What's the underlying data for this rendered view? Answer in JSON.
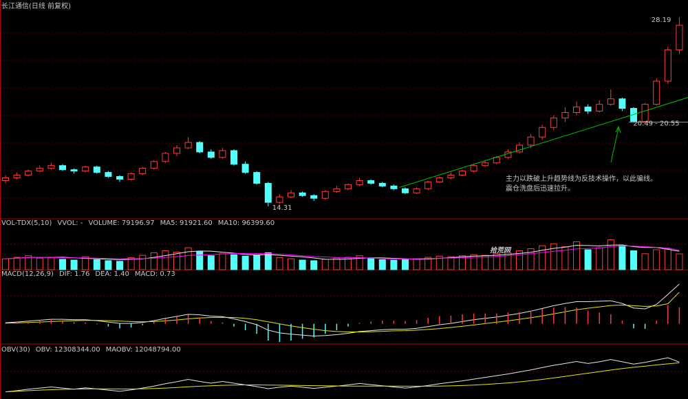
{
  "chart_data": [
    {
      "type": "candlestick",
      "title": "长江通信(日线 前复权)",
      "up_color": "#ff3c3c",
      "down_color": "#54fcfc",
      "ylim": [
        13.8,
        28.7
      ],
      "candles": [
        [
          16.2,
          16.6,
          16.0,
          16.4
        ],
        [
          16.4,
          16.8,
          16.3,
          16.6
        ],
        [
          16.6,
          17.0,
          16.5,
          16.9
        ],
        [
          16.9,
          17.3,
          16.8,
          17.1
        ],
        [
          17.1,
          17.5,
          17.0,
          17.3
        ],
        [
          17.3,
          17.4,
          16.9,
          17.0
        ],
        [
          17.0,
          17.1,
          16.7,
          16.9
        ],
        [
          16.9,
          17.3,
          16.8,
          17.2
        ],
        [
          17.2,
          17.3,
          16.7,
          16.8
        ],
        [
          16.8,
          16.9,
          16.4,
          16.5
        ],
        [
          16.5,
          16.6,
          16.1,
          16.3
        ],
        [
          16.3,
          16.8,
          16.2,
          16.7
        ],
        [
          16.7,
          17.2,
          16.6,
          17.1
        ],
        [
          17.1,
          17.7,
          17.0,
          17.6
        ],
        [
          17.6,
          18.3,
          17.5,
          18.2
        ],
        [
          18.2,
          18.8,
          18.0,
          18.6
        ],
        [
          18.6,
          19.4,
          18.5,
          19.0
        ],
        [
          19.0,
          19.1,
          18.2,
          18.3
        ],
        [
          18.3,
          18.5,
          17.8,
          17.9
        ],
        [
          17.9,
          18.6,
          17.8,
          18.4
        ],
        [
          18.4,
          18.5,
          17.3,
          17.4
        ],
        [
          17.4,
          17.6,
          16.7,
          16.8
        ],
        [
          16.8,
          16.9,
          15.9,
          16.0
        ],
        [
          16.0,
          16.1,
          14.31,
          14.6
        ],
        [
          14.6,
          15.2,
          14.5,
          15.0
        ],
        [
          15.0,
          15.5,
          14.9,
          15.3
        ],
        [
          15.3,
          15.4,
          15.0,
          15.1
        ],
        [
          15.1,
          15.2,
          14.7,
          14.9
        ],
        [
          14.9,
          15.5,
          14.8,
          15.4
        ],
        [
          15.4,
          15.8,
          15.3,
          15.6
        ],
        [
          15.6,
          16.0,
          15.5,
          15.9
        ],
        [
          15.9,
          16.4,
          15.8,
          16.2
        ],
        [
          16.2,
          16.3,
          15.9,
          16.0
        ],
        [
          16.0,
          16.1,
          15.7,
          15.8
        ],
        [
          15.8,
          15.9,
          15.5,
          15.6
        ],
        [
          15.6,
          15.7,
          15.2,
          15.3
        ],
        [
          15.3,
          15.7,
          15.2,
          15.6
        ],
        [
          15.6,
          16.2,
          15.5,
          16.1
        ],
        [
          16.1,
          16.5,
          16.0,
          16.4
        ],
        [
          16.4,
          16.8,
          16.3,
          16.6
        ],
        [
          16.6,
          17.0,
          16.5,
          16.9
        ],
        [
          16.9,
          17.4,
          16.8,
          17.3
        ],
        [
          17.3,
          17.7,
          17.2,
          17.5
        ],
        [
          17.5,
          18.0,
          17.4,
          17.9
        ],
        [
          17.9,
          18.5,
          17.8,
          18.3
        ],
        [
          18.3,
          19.0,
          18.2,
          18.8
        ],
        [
          18.8,
          19.6,
          18.6,
          19.4
        ],
        [
          19.4,
          20.3,
          19.2,
          20.1
        ],
        [
          20.1,
          21.0,
          19.9,
          20.8
        ],
        [
          20.8,
          21.6,
          20.5,
          21.2
        ],
        [
          21.2,
          22.0,
          21.0,
          21.6
        ],
        [
          21.6,
          21.8,
          21.1,
          21.3
        ],
        [
          21.3,
          22.1,
          21.2,
          21.8
        ],
        [
          21.8,
          22.9,
          21.7,
          22.2
        ],
        [
          22.2,
          22.3,
          21.3,
          21.5
        ],
        [
          21.5,
          21.6,
          20.49,
          20.55
        ],
        [
          20.55,
          21.9,
          20.5,
          21.8
        ],
        [
          21.8,
          23.7,
          21.7,
          23.5
        ],
        [
          23.5,
          26.0,
          23.3,
          25.8
        ],
        [
          25.8,
          28.19,
          25.5,
          27.6
        ]
      ],
      "high_label": "28.19",
      "low_label": "14.31",
      "range_label": "20.49 - 20.55",
      "trendline": {
        "x": [
          34.5,
          59.8
        ],
        "y": [
          15.7,
          22.7
        ],
        "color": "#00c000"
      },
      "support_line": {
        "x": [
          54.6,
          59.8
        ],
        "y": 20.5,
        "color": "#c8c8c8"
      },
      "annotation": [
        "主力以跌破上升趋势线为反技术操作，以此骗线。",
        "震仓洗盘后迅速拉升。"
      ],
      "annotation_color": "#00e000"
    },
    {
      "type": "combo",
      "title": "VOL-TDX(5,10)",
      "vvol": "VVOL: -",
      "watermark": "拾荒网",
      "ylim": [
        0,
        200000
      ],
      "series": [
        {
          "name": "VOLUME: 79196.97",
          "type": "bar",
          "color": "#e8e800",
          "values": [
            55000,
            62000,
            70000,
            58000,
            60000,
            52000,
            48000,
            65000,
            50000,
            45000,
            42000,
            60000,
            72000,
            85000,
            95000,
            88000,
            110000,
            90000,
            70000,
            80000,
            75000,
            68000,
            72000,
            85000,
            60000,
            55000,
            48000,
            45000,
            52000,
            58000,
            62000,
            70000,
            55000,
            50000,
            48000,
            52000,
            55000,
            62000,
            68000,
            65000,
            70000,
            75000,
            72000,
            80000,
            85000,
            95000,
            105000,
            120000,
            130000,
            115000,
            140000,
            100000,
            110000,
            150000,
            120000,
            95000,
            80000,
            100000,
            105000,
            79196.97
          ]
        },
        {
          "name": "MA5: 91921.60",
          "type": "line",
          "color": "#e8e8e8",
          "values": [
            55000,
            58000,
            61000,
            62000,
            61000,
            62400,
            59600,
            56600,
            55000,
            52000,
            50000,
            52400,
            53800,
            61800,
            70800,
            80000,
            90000,
            93600,
            92600,
            87600,
            82600,
            76600,
            73000,
            76000,
            72000,
            68000,
            64000,
            58600,
            52000,
            51600,
            53000,
            57400,
            59400,
            59000,
            57000,
            55000,
            52000,
            53400,
            57000,
            60400,
            64000,
            68000,
            70000,
            72400,
            76400,
            81400,
            87400,
            97400,
            107000,
            113000,
            122000,
            121000,
            119000,
            123000,
            124000,
            115000,
            111000,
            111000,
            102000,
            91921.6
          ]
        },
        {
          "name": "MA10: 96399.60",
          "type": "line",
          "color": "#ff00ff",
          "values": [
            55000,
            58000,
            61000,
            62000,
            61000,
            60000,
            59000,
            59000,
            58000,
            56500,
            55200,
            55000,
            55200,
            57900,
            61400,
            65000,
            71000,
            73500,
            75500,
            79000,
            80600,
            81400,
            81000,
            81000,
            77500,
            74200,
            70000,
            65500,
            63700,
            61500,
            60200,
            60400,
            58700,
            55200,
            54000,
            53700,
            54400,
            56100,
            57700,
            58400,
            59200,
            61900,
            63600,
            66600,
            70300,
            74700,
            80000,
            85800,
            92000,
            97000,
            104000,
            106000,
            109000,
            116000,
            119000,
            118000,
            115000,
            112000,
            109000,
            96399.6
          ]
        }
      ]
    },
    {
      "type": "combo",
      "title": "MACD(12,26,9)",
      "ylim": [
        -0.8,
        2.0
      ],
      "up_color": "#ff3c3c",
      "down_color": "#54fcfc",
      "series": [
        {
          "name": "DIF: 1.76",
          "type": "line",
          "color": "#e8e8e8",
          "values": [
            0.05,
            0.08,
            0.12,
            0.16,
            0.2,
            0.2,
            0.18,
            0.18,
            0.14,
            0.08,
            0.02,
            0.02,
            0.06,
            0.14,
            0.24,
            0.33,
            0.42,
            0.4,
            0.34,
            0.32,
            0.22,
            0.1,
            -0.04,
            -0.28,
            -0.4,
            -0.46,
            -0.5,
            -0.54,
            -0.52,
            -0.48,
            -0.42,
            -0.34,
            -0.3,
            -0.26,
            -0.24,
            -0.24,
            -0.2,
            -0.12,
            -0.04,
            0.02,
            0.1,
            0.18,
            0.24,
            0.3,
            0.38,
            0.46,
            0.56,
            0.68,
            0.8,
            0.9,
            0.98,
            0.98,
            1.0,
            1.02,
            0.9,
            0.7,
            0.66,
            0.86,
            1.3,
            1.76
          ]
        },
        {
          "name": "DEA: 1.40",
          "type": "line",
          "color": "#e8e800",
          "values": [
            0.03,
            0.04,
            0.06,
            0.08,
            0.1,
            0.12,
            0.14,
            0.15,
            0.15,
            0.14,
            0.12,
            0.1,
            0.09,
            0.1,
            0.13,
            0.17,
            0.22,
            0.26,
            0.28,
            0.29,
            0.28,
            0.24,
            0.18,
            0.09,
            0,
            -0.09,
            -0.17,
            -0.24,
            -0.3,
            -0.34,
            -0.36,
            -0.36,
            -0.35,
            -0.33,
            -0.31,
            -0.3,
            -0.28,
            -0.25,
            -0.21,
            -0.16,
            -0.11,
            -0.05,
            0.01,
            0.07,
            0.13,
            0.2,
            0.27,
            0.35,
            0.44,
            0.53,
            0.62,
            0.69,
            0.75,
            0.81,
            0.83,
            0.8,
            0.77,
            0.79,
            0.89,
            1.4
          ]
        },
        {
          "name": "MACD: 0.73",
          "type": "bar",
          "color": "#ff00ff",
          "values": [
            0.04,
            0.08,
            0.12,
            0.16,
            0.2,
            0.16,
            0.08,
            0.06,
            -0.02,
            -0.12,
            -0.2,
            -0.16,
            -0.06,
            0.08,
            0.22,
            0.32,
            0.4,
            0.28,
            0.12,
            0.06,
            -0.12,
            -0.28,
            -0.44,
            -0.74,
            -0.8,
            -0.74,
            -0.66,
            -0.6,
            -0.44,
            -0.28,
            -0.12,
            0.04,
            0.1,
            0.14,
            0.14,
            0.12,
            0.16,
            0.26,
            0.34,
            0.36,
            0.42,
            0.46,
            0.46,
            0.46,
            0.5,
            0.52,
            0.58,
            0.66,
            0.72,
            0.74,
            0.72,
            0.58,
            0.5,
            0.42,
            0.14,
            -0.2,
            -0.22,
            0.14,
            0.82,
            0.73
          ]
        }
      ]
    },
    {
      "type": "combo",
      "title": "OBV(30)",
      "ylim": [
        0,
        15000000
      ],
      "series": [
        {
          "name": "OBV: 12308344.00",
          "type": "line",
          "color": "#e8e8e8",
          "values": [
            2000000,
            2400000,
            2900000,
            3300000,
            3700000,
            3300000,
            2900000,
            3400000,
            3000000,
            2600000,
            2200000,
            2700000,
            3300000,
            4000000,
            4800000,
            5500000,
            6300000,
            5600000,
            5000000,
            5600000,
            5000000,
            4400000,
            3800000,
            3100000,
            3600000,
            4000000,
            3600000,
            3200000,
            3600000,
            4000000,
            4400000,
            4900000,
            4500000,
            4100000,
            3700000,
            3300000,
            3700000,
            4200000,
            4800000,
            5300000,
            5800000,
            6400000,
            7000000,
            7600000,
            8200000,
            8900000,
            9600000,
            10400000,
            11200000,
            11800000,
            12500000,
            11800000,
            12400000,
            13200000,
            12400000,
            11600000,
            12200000,
            13000000,
            13800000,
            12308344
          ]
        },
        {
          "name": "MAOBV: 12048794.00",
          "type": "line",
          "color": "#e8e800",
          "values": [
            2000000,
            2200000,
            2400000,
            2600000,
            2750000,
            2850000,
            2950000,
            3000000,
            3050000,
            3050000,
            3000000,
            3000000,
            3050000,
            3150000,
            3300000,
            3500000,
            3750000,
            3950000,
            4100000,
            4250000,
            4350000,
            4400000,
            4400000,
            4350000,
            4300000,
            4250000,
            4200000,
            4150000,
            4100000,
            4050000,
            4000000,
            4000000,
            4000000,
            4000000,
            3980000,
            3960000,
            3950000,
            3960000,
            4000000,
            4080000,
            4200000,
            4350000,
            4550000,
            4800000,
            5100000,
            5450000,
            5850000,
            6300000,
            6800000,
            7350000,
            7900000,
            8450000,
            9000000,
            9550000,
            10050000,
            10500000,
            10900000,
            11300000,
            11700000,
            12048794
          ]
        }
      ]
    }
  ]
}
